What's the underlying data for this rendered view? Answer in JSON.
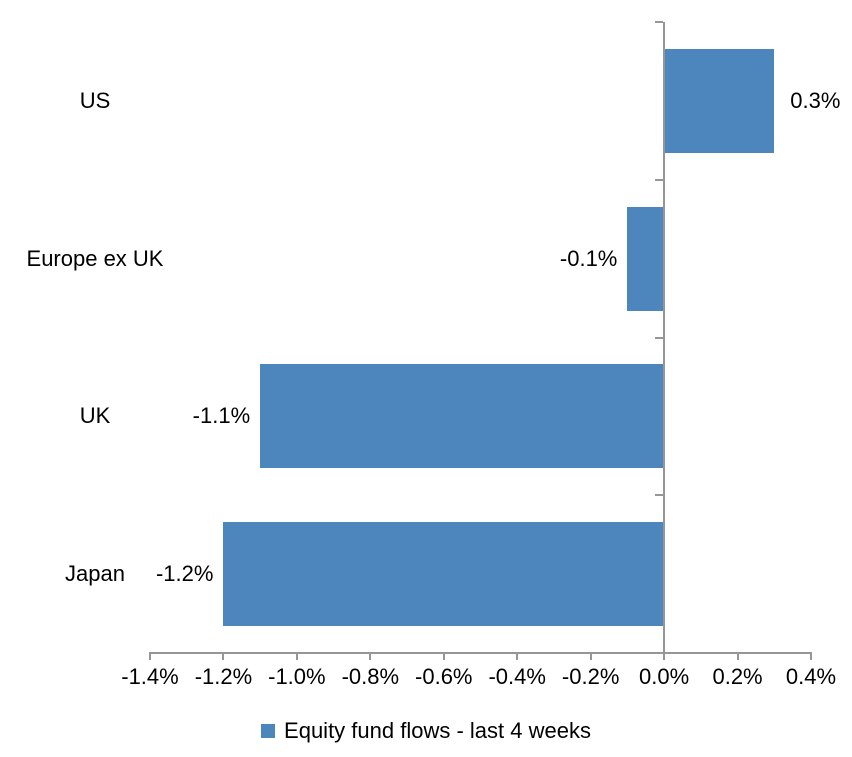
{
  "window": {
    "background_color": "#ffffff"
  },
  "chart_data": {
    "type": "bar",
    "orientation": "horizontal",
    "title": "",
    "xlabel": "",
    "ylabel": "",
    "categories": [
      "US",
      "Europe ex UK",
      "UK",
      "Japan"
    ],
    "series": [
      {
        "name": "Equity fund flows - last 4 weeks",
        "values": [
          0.3,
          -0.1,
          -1.1,
          -1.2
        ]
      }
    ],
    "data_labels": [
      "0.3%",
      "-0.1%",
      "-1.1%",
      "-1.2%"
    ],
    "xlim": [
      -1.4,
      0.4
    ],
    "x_tick_step": 0.2,
    "x_tick_labels": [
      "-1.4%",
      "-1.2%",
      "-1.0%",
      "-0.8%",
      "-0.6%",
      "-0.4%",
      "-0.2%",
      "0.0%",
      "0.2%",
      "0.4%"
    ],
    "grid": false,
    "legend_position": "bottom",
    "colors": {
      "bar": "#4d86bd",
      "axis": "#969696",
      "text": "#000000",
      "background": "#ffffff"
    }
  }
}
